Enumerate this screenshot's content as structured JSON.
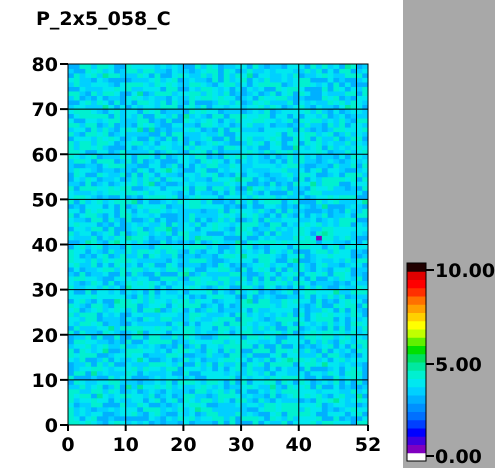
{
  "chart_data": {
    "type": "heatmap",
    "title": "P_2x5_058_C",
    "x_range": [
      0,
      52
    ],
    "y_range": [
      0,
      80
    ],
    "x_ticks": [
      "0",
      "10",
      "20",
      "30",
      "40",
      "52"
    ],
    "y_ticks": [
      "0",
      "10",
      "20",
      "30",
      "40",
      "50",
      "60",
      "70",
      "80"
    ],
    "grid_x": [
      10,
      20,
      30,
      40,
      50
    ],
    "grid_y": [
      10,
      20,
      30,
      40,
      50,
      60,
      70
    ],
    "grid": true,
    "colorbar": {
      "min": 0.0,
      "max": 10.0,
      "labels": [
        "10.00",
        "5.00",
        "0.00"
      ],
      "colors": [
        "#ffffff",
        "#8000c0",
        "#4000e0",
        "#0000ff",
        "#0040ff",
        "#0070ff",
        "#0090ff",
        "#00b0ff",
        "#00d0ff",
        "#00e8f0",
        "#00f0d0",
        "#00e8a0",
        "#00e060",
        "#00e000",
        "#60f000",
        "#c0ff00",
        "#ffff00",
        "#ffd000",
        "#ffa000",
        "#ff7000",
        "#ff3000",
        "#ff0000",
        "#e00000",
        "#200000"
      ]
    },
    "cell_values": {
      "typical_range": [
        3.0,
        4.6
      ],
      "outlier": {
        "x": 43,
        "y": 41,
        "value": 0.5
      }
    }
  }
}
